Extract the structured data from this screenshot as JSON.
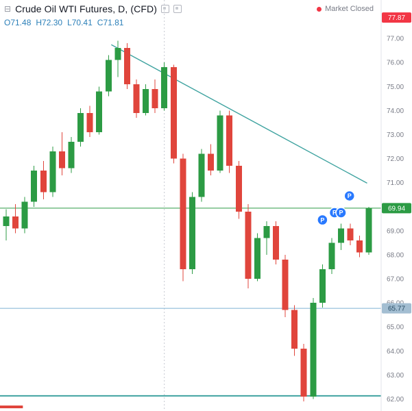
{
  "header": {
    "collapse_icon": "⊟",
    "title": "Crude Oil WTI Futures, D, (CFD)",
    "ohlc": {
      "open": "O71.48",
      "high": "H72.30",
      "low": "L70.41",
      "close": "C71.81"
    },
    "market_status": {
      "label": "Market Closed"
    }
  },
  "chart_data": {
    "type": "candlestick",
    "symbol": "Crude Oil WTI Futures",
    "interval": "D",
    "instrument_type": "CFD",
    "ylim": [
      61.5,
      78.6
    ],
    "y_ticks": [
      77.0,
      76.0,
      75.0,
      74.0,
      73.0,
      72.0,
      71.0,
      69.0,
      68.0,
      67.0,
      66.0,
      65.0,
      64.0,
      63.0,
      62.0
    ],
    "candles": [
      [
        69.2,
        69.9,
        68.6,
        69.6
      ],
      [
        69.6,
        70.1,
        68.9,
        69.1
      ],
      [
        69.1,
        70.4,
        68.9,
        70.2
      ],
      [
        70.2,
        71.7,
        70.0,
        71.5
      ],
      [
        71.5,
        71.9,
        70.3,
        70.6
      ],
      [
        70.6,
        72.5,
        70.4,
        72.3
      ],
      [
        72.3,
        73.1,
        71.3,
        71.6
      ],
      [
        71.6,
        72.9,
        71.4,
        72.7
      ],
      [
        72.7,
        74.1,
        72.5,
        73.9
      ],
      [
        73.9,
        74.2,
        72.9,
        73.1
      ],
      [
        73.1,
        75.0,
        73.0,
        74.8
      ],
      [
        74.8,
        76.3,
        74.6,
        76.1
      ],
      [
        76.1,
        76.9,
        75.4,
        76.6
      ],
      [
        76.6,
        76.8,
        74.9,
        75.1
      ],
      [
        75.1,
        75.3,
        73.7,
        73.9
      ],
      [
        73.9,
        75.1,
        73.8,
        74.9
      ],
      [
        74.9,
        75.3,
        73.9,
        74.1
      ],
      [
        74.1,
        76.0,
        74.0,
        75.8
      ],
      [
        75.8,
        75.9,
        71.8,
        72.0
      ],
      [
        72.0,
        72.2,
        66.9,
        67.4
      ],
      [
        67.4,
        70.6,
        67.2,
        70.4
      ],
      [
        70.4,
        72.4,
        70.2,
        72.2
      ],
      [
        72.2,
        72.6,
        71.3,
        71.5
      ],
      [
        71.5,
        74.0,
        71.4,
        73.8
      ],
      [
        73.8,
        74.0,
        71.4,
        71.7
      ],
      [
        71.7,
        71.9,
        69.5,
        69.8
      ],
      [
        69.8,
        70.1,
        66.6,
        67.0
      ],
      [
        67.0,
        68.9,
        66.9,
        68.7
      ],
      [
        68.7,
        69.4,
        68.0,
        69.2
      ],
      [
        69.2,
        69.4,
        67.6,
        67.8
      ],
      [
        67.8,
        68.0,
        65.4,
        65.7
      ],
      [
        65.7,
        65.9,
        63.8,
        64.1
      ],
      [
        64.1,
        64.3,
        61.9,
        62.1
      ],
      [
        62.1,
        66.2,
        62.0,
        66.0
      ],
      [
        66.0,
        67.6,
        65.8,
        67.4
      ],
      [
        67.4,
        68.7,
        67.2,
        68.5
      ],
      [
        68.5,
        69.3,
        68.2,
        69.1
      ],
      [
        69.1,
        69.3,
        68.4,
        68.6
      ],
      [
        68.6,
        68.8,
        67.9,
        68.1
      ],
      [
        68.1,
        70.0,
        68.0,
        69.94
      ]
    ],
    "levels": [
      {
        "price": 69.94,
        "color": "#2c9b44",
        "badge": "69.94",
        "badge_fg": "#ffffff"
      },
      {
        "price": 65.77,
        "color": "#7fb0d4",
        "badge": "65.77",
        "badge_bg": "#a3bed2",
        "badge_fg": "#274b63"
      },
      {
        "price": 62.13,
        "color": "#3fa3a0",
        "stroke_width": 2
      },
      {
        "price": 61.67,
        "color": "#e0453c",
        "stroke_width": 4,
        "x_end_frac": 0.06
      }
    ],
    "axis_badges": [
      {
        "label": "77.87",
        "price": 77.87,
        "bg": "#f23645",
        "fg": "#ffffff"
      }
    ],
    "trendline": {
      "from_index": 11.3,
      "from_price": 76.74,
      "to_index": 38.8,
      "to_price": 70.98
    },
    "vline_index": 17,
    "markers": [
      {
        "label": "P",
        "index": 34.0,
        "price": 69.45
      },
      {
        "label": "P",
        "index": 35.3,
        "price": 69.75
      },
      {
        "label": "P",
        "index": 36.0,
        "price": 69.75
      },
      {
        "label": "P",
        "index": 36.9,
        "price": 70.45
      }
    ],
    "colors": {
      "up": "#2c9b44",
      "down": "#e0453c",
      "trendline": "#3fa3a0",
      "marker": "#2979ff",
      "axis_text": "#787b86",
      "axis_border": "#e0e3eb",
      "ohlc_text": "#2b7fb8",
      "market_closed_dot": "#f23645",
      "crosshair_vline": "#c6c9d0"
    }
  }
}
